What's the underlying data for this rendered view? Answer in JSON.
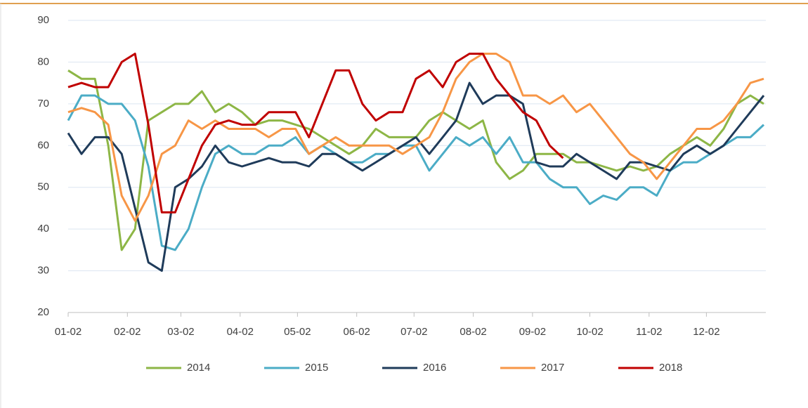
{
  "chart_data": {
    "type": "line",
    "x": [
      0,
      7,
      14,
      21,
      28,
      35,
      42,
      49,
      56,
      63,
      70,
      77,
      84,
      91,
      98,
      105,
      112,
      119,
      126,
      133,
      140,
      147,
      154,
      161,
      168,
      175,
      182,
      189,
      196,
      203,
      210,
      217,
      224,
      231,
      238,
      245,
      252,
      259,
      266,
      273,
      280,
      287,
      294,
      301,
      308,
      315,
      322,
      329,
      336,
      343,
      350,
      357,
      364
    ],
    "xlim": [
      0,
      364
    ],
    "xticks": [
      {
        "value": 0,
        "label": "01-02"
      },
      {
        "value": 31,
        "label": "02-02"
      },
      {
        "value": 59,
        "label": "03-02"
      },
      {
        "value": 90,
        "label": "04-02"
      },
      {
        "value": 120,
        "label": "05-02"
      },
      {
        "value": 151,
        "label": "06-02"
      },
      {
        "value": 181,
        "label": "07-02"
      },
      {
        "value": 212,
        "label": "08-02"
      },
      {
        "value": 243,
        "label": "09-02"
      },
      {
        "value": 273,
        "label": "10-02"
      },
      {
        "value": 304,
        "label": "11-02"
      },
      {
        "value": 334,
        "label": "12-02"
      }
    ],
    "ylim": [
      20,
      90
    ],
    "yticks": [
      20,
      30,
      40,
      50,
      60,
      70,
      80,
      90
    ],
    "grid": true,
    "legend": "bottom",
    "series": [
      {
        "name": "2014",
        "color": "#8db646",
        "values": [
          78,
          76,
          76,
          60,
          35,
          40,
          66,
          68,
          70,
          70,
          73,
          68,
          70,
          68,
          65,
          66,
          66,
          65,
          64,
          62,
          60,
          58,
          60,
          64,
          62,
          62,
          62,
          66,
          68,
          66,
          64,
          66,
          56,
          52,
          54,
          58,
          58,
          58,
          56,
          56,
          55,
          54,
          55,
          54,
          55,
          58,
          60,
          62,
          60,
          64,
          70,
          72,
          70
        ]
      },
      {
        "name": "2015",
        "color": "#4bacc6",
        "values": [
          66,
          72,
          72,
          70,
          70,
          66,
          55,
          36,
          35,
          40,
          50,
          58,
          60,
          58,
          58,
          60,
          60,
          62,
          58,
          60,
          58,
          56,
          56,
          58,
          58,
          60,
          60,
          54,
          58,
          62,
          60,
          62,
          58,
          62,
          56,
          56,
          52,
          50,
          50,
          46,
          48,
          47,
          50,
          50,
          48,
          54,
          56,
          56,
          58,
          60,
          62,
          62,
          65
        ]
      },
      {
        "name": "2016",
        "color": "#1f3b5a",
        "values": [
          63,
          58,
          62,
          62,
          58,
          45,
          32,
          30,
          50,
          52,
          55,
          60,
          56,
          55,
          56,
          57,
          56,
          56,
          55,
          58,
          58,
          56,
          54,
          56,
          58,
          60,
          62,
          58,
          62,
          66,
          75,
          70,
          72,
          72,
          70,
          56,
          55,
          55,
          58,
          56,
          54,
          52,
          56,
          56,
          55,
          54,
          58,
          60,
          58,
          60,
          64,
          68,
          72
        ]
      },
      {
        "name": "2017",
        "color": "#f79646",
        "values": [
          68,
          69,
          68,
          65,
          48,
          42,
          48,
          58,
          60,
          66,
          64,
          66,
          64,
          64,
          64,
          62,
          64,
          64,
          58,
          60,
          62,
          60,
          60,
          60,
          60,
          58,
          60,
          62,
          68,
          76,
          80,
          82,
          82,
          80,
          72,
          72,
          70,
          72,
          68,
          70,
          66,
          62,
          58,
          56,
          52,
          56,
          60,
          64,
          64,
          66,
          70,
          75,
          76
        ]
      },
      {
        "name": "2018",
        "color": "#c00000",
        "values": [
          74,
          75,
          74,
          74,
          80,
          82,
          65,
          44,
          44,
          52,
          60,
          65,
          66,
          65,
          65,
          68,
          68,
          68,
          62,
          70,
          78,
          78,
          70,
          66,
          68,
          68,
          76,
          78,
          74,
          80,
          82,
          82,
          76,
          72,
          68,
          66,
          60,
          57,
          null,
          null,
          null,
          null,
          null,
          null,
          null,
          null,
          null,
          null,
          null,
          null,
          null,
          null,
          null
        ]
      }
    ]
  }
}
